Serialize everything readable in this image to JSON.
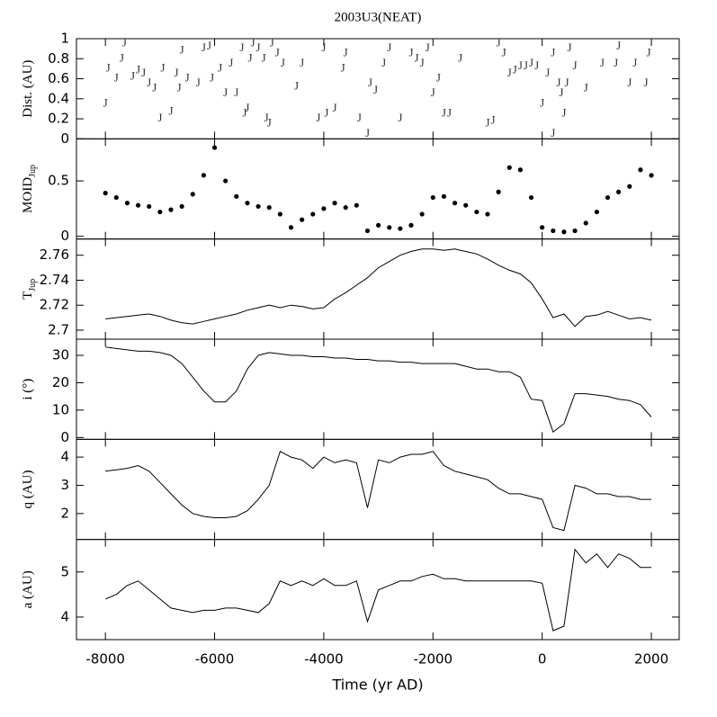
{
  "chart_data": [
    {
      "type": "scatter",
      "title": "2003U3(NEAT)",
      "ylabel": "Dist. (AU)",
      "marker": "J",
      "x": [
        -8000,
        -7950,
        -7800,
        -7700,
        -7650,
        -7500,
        -7400,
        -7300,
        -7200,
        -7100,
        -7000,
        -6950,
        -6800,
        -6700,
        -6650,
        -6600,
        -6500,
        -6300,
        -6200,
        -6100,
        -6050,
        -5900,
        -5800,
        -5700,
        -5600,
        -5500,
        -5450,
        -5400,
        -5350,
        -5300,
        -5200,
        -5100,
        -5050,
        -5000,
        -4950,
        -4850,
        -4750,
        -4500,
        -4400,
        -4100,
        -4000,
        -3950,
        -3800,
        -3650,
        -3600,
        -3350,
        -3200,
        -3150,
        -3050,
        -2900,
        -2800,
        -2600,
        -2400,
        -2300,
        -2200,
        -2100,
        -2000,
        -1900,
        -1800,
        -1700,
        -1500,
        -1000,
        -900,
        -800,
        -700,
        -600,
        -500,
        -400,
        -300,
        -200,
        -100,
        0,
        100,
        200,
        200,
        300,
        350,
        400,
        450,
        500,
        600,
        800,
        1100,
        1350,
        1400,
        1600,
        1700,
        1900,
        1950
      ],
      "values": [
        0.35,
        0.7,
        0.6,
        0.8,
        0.95,
        0.62,
        0.68,
        0.65,
        0.55,
        0.5,
        0.2,
        0.7,
        0.27,
        0.65,
        0.5,
        0.88,
        0.6,
        0.55,
        0.9,
        0.92,
        0.6,
        0.7,
        0.45,
        0.75,
        0.45,
        0.9,
        0.25,
        0.3,
        0.8,
        0.95,
        0.9,
        0.8,
        0.2,
        0.15,
        0.95,
        0.85,
        0.75,
        0.52,
        0.75,
        0.2,
        0.9,
        0.25,
        0.3,
        0.7,
        0.85,
        0.2,
        0.05,
        0.55,
        0.48,
        0.75,
        0.9,
        0.2,
        0.85,
        0.8,
        0.75,
        0.9,
        0.45,
        0.6,
        0.25,
        0.25,
        0.8,
        0.15,
        0.18,
        0.95,
        0.85,
        0.65,
        0.68,
        0.72,
        0.72,
        0.75,
        0.72,
        0.35,
        0.65,
        0.05,
        0.85,
        0.55,
        0.45,
        0.25,
        0.55,
        0.9,
        0.72,
        0.5,
        0.75,
        0.75,
        0.92,
        0.55,
        0.75,
        0.55,
        0.85
      ],
      "ylim": [
        0,
        1
      ],
      "yticks": [
        0,
        0.2,
        0.4,
        0.6,
        0.8,
        1
      ]
    },
    {
      "type": "scatter",
      "ylabel": "MOID",
      "ylabel_sub": "Jup",
      "x": [
        -8000,
        -7800,
        -7600,
        -7400,
        -7200,
        -7000,
        -6800,
        -6600,
        -6400,
        -6200,
        -6000,
        -5800,
        -5600,
        -5400,
        -5200,
        -5000,
        -4800,
        -4600,
        -4400,
        -4200,
        -4000,
        -3800,
        -3600,
        -3400,
        -3200,
        -3000,
        -2800,
        -2600,
        -2400,
        -2200,
        -2000,
        -1800,
        -1600,
        -1400,
        -1200,
        -1000,
        -800,
        -600,
        -400,
        -200,
        0,
        200,
        400,
        600,
        800,
        1000,
        1200,
        1400,
        1600,
        1800,
        2000
      ],
      "values": [
        0.39,
        0.35,
        0.3,
        0.28,
        0.27,
        0.22,
        0.24,
        0.27,
        0.38,
        0.55,
        0.8,
        0.5,
        0.36,
        0.3,
        0.27,
        0.26,
        0.2,
        0.08,
        0.15,
        0.2,
        0.25,
        0.3,
        0.26,
        0.28,
        0.05,
        0.1,
        0.08,
        0.07,
        0.1,
        0.2,
        0.35,
        0.36,
        0.3,
        0.28,
        0.22,
        0.2,
        0.4,
        0.62,
        0.6,
        0.35,
        0.08,
        0.05,
        0.04,
        0.05,
        0.12,
        0.22,
        0.35,
        0.4,
        0.45,
        0.6,
        0.55
      ],
      "ylim": [
        -0.024,
        0.879
      ],
      "yticks": [
        0,
        0.5
      ]
    },
    {
      "type": "line",
      "ylabel": "T",
      "ylabel_sub": "Jup",
      "x": [
        -8000,
        -7800,
        -7600,
        -7400,
        -7200,
        -7000,
        -6800,
        -6600,
        -6400,
        -6200,
        -6000,
        -5800,
        -5600,
        -5400,
        -5200,
        -5000,
        -4800,
        -4600,
        -4400,
        -4200,
        -4000,
        -3800,
        -3600,
        -3400,
        -3200,
        -3000,
        -2800,
        -2600,
        -2400,
        -2200,
        -2000,
        -1800,
        -1600,
        -1400,
        -1200,
        -1000,
        -800,
        -600,
        -400,
        -200,
        0,
        200,
        400,
        600,
        800,
        1000,
        1200,
        1400,
        1600,
        1800,
        2000
      ],
      "values": [
        2.709,
        2.71,
        2.711,
        2.712,
        2.713,
        2.711,
        2.708,
        2.706,
        2.705,
        2.707,
        2.709,
        2.711,
        2.713,
        2.716,
        2.718,
        2.72,
        2.718,
        2.72,
        2.719,
        2.717,
        2.718,
        2.725,
        2.73,
        2.736,
        2.742,
        2.75,
        2.755,
        2.76,
        2.763,
        2.765,
        2.765,
        2.764,
        2.765,
        2.763,
        2.761,
        2.757,
        2.752,
        2.748,
        2.745,
        2.738,
        2.725,
        2.71,
        2.713,
        2.703,
        2.711,
        2.712,
        2.715,
        2.712,
        2.709,
        2.71,
        2.708
      ],
      "ylim": [
        2.6928,
        2.773
      ],
      "yticks": [
        2.7,
        2.72,
        2.74,
        2.76
      ]
    },
    {
      "type": "line",
      "ylabel": "i (°)",
      "x": [
        -8000,
        -7800,
        -7600,
        -7400,
        -7200,
        -7000,
        -6800,
        -6600,
        -6400,
        -6200,
        -6000,
        -5800,
        -5600,
        -5400,
        -5200,
        -5000,
        -4800,
        -4600,
        -4400,
        -4200,
        -4000,
        -3800,
        -3600,
        -3400,
        -3200,
        -3000,
        -2800,
        -2600,
        -2400,
        -2200,
        -2000,
        -1800,
        -1600,
        -1400,
        -1200,
        -1000,
        -800,
        -600,
        -400,
        -200,
        0,
        200,
        400,
        600,
        800,
        1000,
        1200,
        1400,
        1600,
        1800,
        2000
      ],
      "values": [
        33,
        32.5,
        32,
        31.5,
        31.5,
        31,
        30,
        27,
        22,
        17,
        13,
        13,
        17,
        25,
        30,
        31,
        30.5,
        30,
        30,
        29.5,
        29.5,
        29,
        29,
        28.5,
        28.5,
        28,
        28,
        27.5,
        27.5,
        27,
        27,
        27,
        27,
        26,
        25,
        25,
        24,
        24,
        22,
        14,
        13.5,
        2,
        5,
        16,
        16,
        15.5,
        15,
        14,
        13.5,
        12,
        7.5
      ],
      "ylim": [
        -0.66,
        35.9
      ],
      "yticks": [
        0,
        10,
        20,
        30
      ]
    },
    {
      "type": "line",
      "ylabel": "q (AU)",
      "x": [
        -8000,
        -7800,
        -7600,
        -7400,
        -7200,
        -7000,
        -6800,
        -6600,
        -6400,
        -6200,
        -6000,
        -5800,
        -5600,
        -5400,
        -5200,
        -5000,
        -4800,
        -4600,
        -4400,
        -4200,
        -4000,
        -3800,
        -3600,
        -3400,
        -3200,
        -3000,
        -2800,
        -2600,
        -2400,
        -2200,
        -2000,
        -1800,
        -1600,
        -1400,
        -1200,
        -1000,
        -800,
        -600,
        -400,
        -200,
        0,
        200,
        400,
        600,
        800,
        1000,
        1200,
        1400,
        1600,
        1800,
        2000
      ],
      "values": [
        3.5,
        3.55,
        3.6,
        3.7,
        3.5,
        3.1,
        2.7,
        2.3,
        2.0,
        1.9,
        1.85,
        1.85,
        1.9,
        2.1,
        2.5,
        3.0,
        4.2,
        4.0,
        3.9,
        3.6,
        4.0,
        3.8,
        3.9,
        3.8,
        2.2,
        3.9,
        3.8,
        4.0,
        4.1,
        4.1,
        4.2,
        3.7,
        3.5,
        3.4,
        3.3,
        3.2,
        2.9,
        2.7,
        2.7,
        2.6,
        2.5,
        1.5,
        1.4,
        3.0,
        2.9,
        2.7,
        2.7,
        2.6,
        2.6,
        2.5,
        2.5
      ],
      "ylim": [
        1.08,
        4.63
      ],
      "yticks": [
        2,
        3,
        4
      ]
    },
    {
      "type": "line",
      "ylabel": "a (AU)",
      "xlabel": "Time (yr AD)",
      "x": [
        -8000,
        -7800,
        -7600,
        -7400,
        -7200,
        -7000,
        -6800,
        -6600,
        -6400,
        -6200,
        -6000,
        -5800,
        -5600,
        -5400,
        -5200,
        -5000,
        -4800,
        -4600,
        -4400,
        -4200,
        -4000,
        -3800,
        -3600,
        -3400,
        -3200,
        -3000,
        -2800,
        -2600,
        -2400,
        -2200,
        -2000,
        -1800,
        -1600,
        -1400,
        -1200,
        -1000,
        -800,
        -600,
        -400,
        -200,
        0,
        200,
        400,
        600,
        800,
        1000,
        1200,
        1400,
        1600,
        1800,
        2000
      ],
      "values": [
        4.4,
        4.5,
        4.7,
        4.8,
        4.6,
        4.4,
        4.2,
        4.15,
        4.1,
        4.15,
        4.15,
        4.2,
        4.2,
        4.15,
        4.1,
        4.3,
        4.8,
        4.7,
        4.8,
        4.7,
        4.85,
        4.7,
        4.7,
        4.8,
        3.9,
        4.6,
        4.7,
        4.8,
        4.8,
        4.9,
        4.95,
        4.85,
        4.85,
        4.8,
        4.8,
        4.8,
        4.8,
        4.8,
        4.8,
        4.8,
        4.75,
        3.7,
        3.8,
        5.5,
        5.2,
        5.4,
        5.1,
        5.4,
        5.3,
        5.1,
        5.1
      ],
      "ylim": [
        3.5,
        5.72
      ],
      "yticks": [
        4,
        5
      ],
      "xlim": [
        -8530,
        2510
      ],
      "xticks": [
        -8000,
        -6000,
        -4000,
        -2000,
        0,
        2000
      ]
    }
  ]
}
